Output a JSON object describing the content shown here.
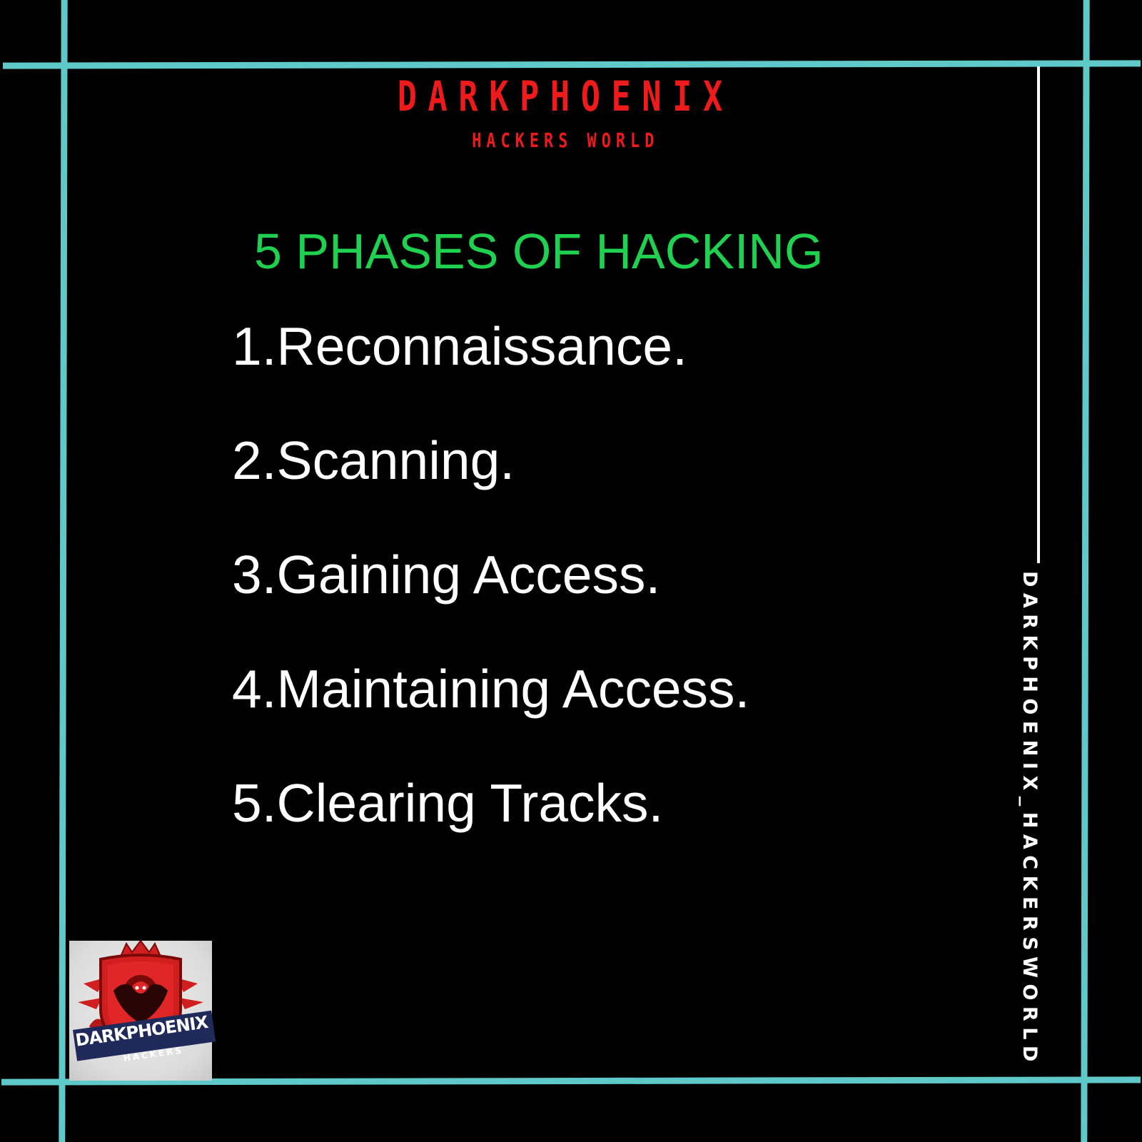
{
  "brand": {
    "title": "DARKPHOENIX",
    "subtitle": "HACKERS WORLD"
  },
  "heading": "5 PHASES OF HACKING",
  "phases": [
    "1.Reconnaissance.",
    "2.Scanning.",
    "3.Gaining Access.",
    "4.Maintaining Access.",
    "5.Clearing Tracks."
  ],
  "side_handle": "DARKPHOENIX_HACKERSWORLD",
  "logo": {
    "main": "DARKPHOENIX",
    "sub": "HACKERS"
  },
  "colors": {
    "background": "#000000",
    "frame": "#5fc9c9",
    "brand_red": "#ef1b1b",
    "heading_green": "#1fd14f",
    "text": "#ffffff",
    "logo_banner": "#1f2a5a"
  }
}
